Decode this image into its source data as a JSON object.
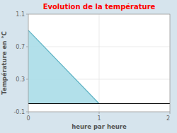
{
  "chart_data": {
    "type": "area",
    "title": "Evolution de la température",
    "xlabel": "heure par heure",
    "ylabel": "Température en °C",
    "x": [
      0,
      1
    ],
    "values": [
      0.9,
      0.0
    ],
    "color": "#aadde8",
    "xlim": [
      0,
      2
    ],
    "ylim": [
      -0.1,
      1.1
    ],
    "xticks": [
      0,
      1,
      2
    ],
    "yticks": [
      -0.1,
      0.3,
      0.7,
      1.1
    ],
    "grid": true
  }
}
